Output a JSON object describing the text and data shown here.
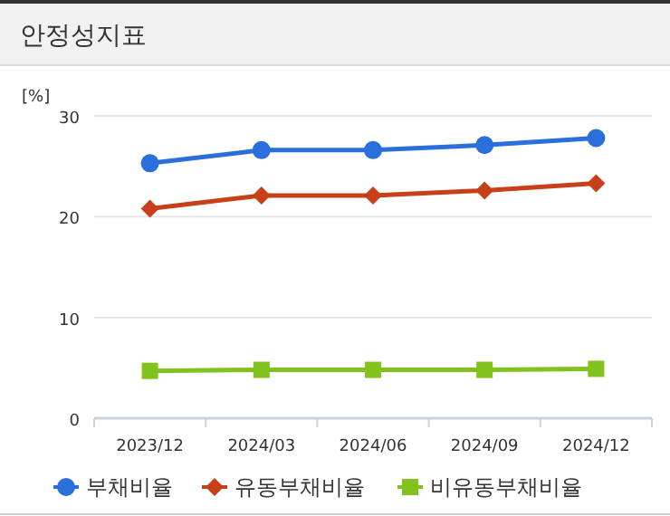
{
  "chart_data": {
    "type": "line",
    "title": "안정성지표",
    "ylabel": "[%]",
    "categories": [
      "2023/12",
      "2024/03",
      "2024/06",
      "2024/09",
      "2024/12"
    ],
    "series": [
      {
        "name": "부채비율",
        "color": "#2a6fdb",
        "marker": "circle",
        "values": [
          25.3,
          26.6,
          26.6,
          27.1,
          27.8
        ]
      },
      {
        "name": "유동부채비율",
        "color": "#c8401a",
        "marker": "diamond",
        "values": [
          20.8,
          22.1,
          22.1,
          22.6,
          23.3
        ]
      },
      {
        "name": "비유동부채비율",
        "color": "#82c21d",
        "marker": "square",
        "values": [
          4.7,
          4.8,
          4.8,
          4.8,
          4.9
        ]
      }
    ],
    "ylim": [
      0,
      30
    ],
    "yticks": [
      0,
      10,
      20,
      30
    ],
    "grid": "y",
    "legend": "bottom"
  }
}
